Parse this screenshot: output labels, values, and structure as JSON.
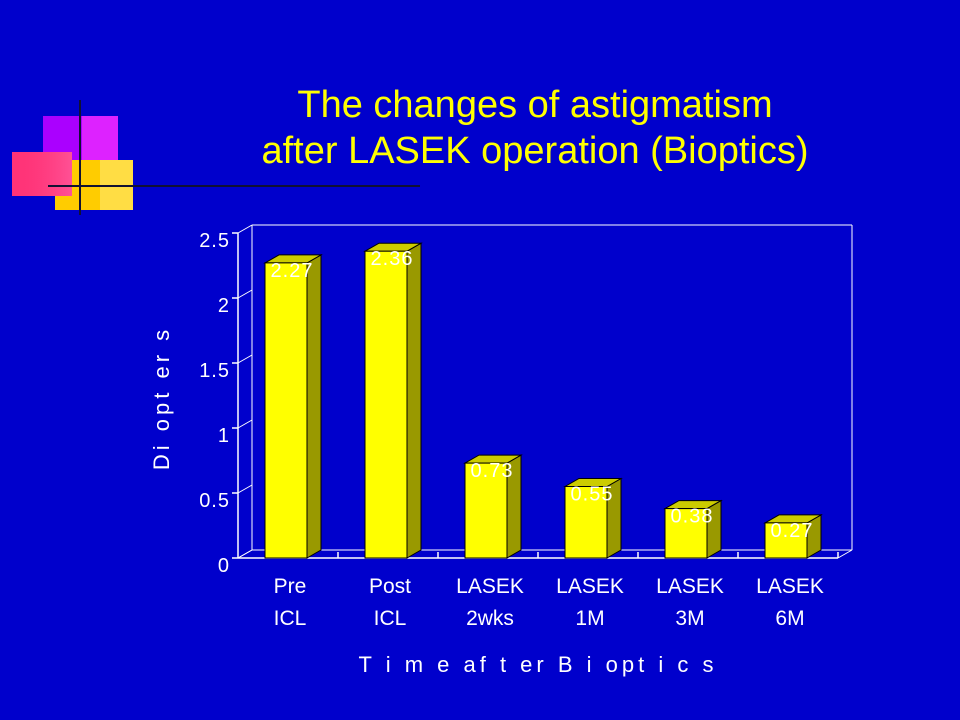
{
  "title_line1": "The changes of astigmatism",
  "title_line2": "after LASEK operation (Bioptics)",
  "colors": {
    "background": "#0000cc",
    "title": "#ffff00",
    "bar_front": "#ffff00",
    "bar_side": "#999900",
    "bar_top": "#cccc00",
    "axis": "#ffffff"
  },
  "chart_data": {
    "type": "bar",
    "title": "",
    "xlabel": "T i m e  af t er  B i opt i c s",
    "ylabel": "Di opt er s",
    "categories": [
      [
        "Pre",
        "ICL"
      ],
      [
        "Post",
        "ICL"
      ],
      [
        "LASEK",
        "2wks"
      ],
      [
        "LASEK",
        "1M"
      ],
      [
        "LASEK",
        "3M"
      ],
      [
        "LASEK",
        "6M"
      ]
    ],
    "values": [
      2.27,
      2.36,
      0.73,
      0.55,
      0.38,
      0.27
    ],
    "data_labels": [
      "2.27",
      "2.36",
      "0.73",
      "0.55",
      "0.38",
      "0.27"
    ],
    "yticks": [
      0,
      0.5,
      1,
      1.5,
      2,
      2.5
    ],
    "ytick_labels": [
      "0",
      "0.5",
      "1",
      "1.5",
      "2",
      "2.5"
    ],
    "ylim": [
      0,
      2.5
    ],
    "grid": false,
    "legend": "none"
  }
}
